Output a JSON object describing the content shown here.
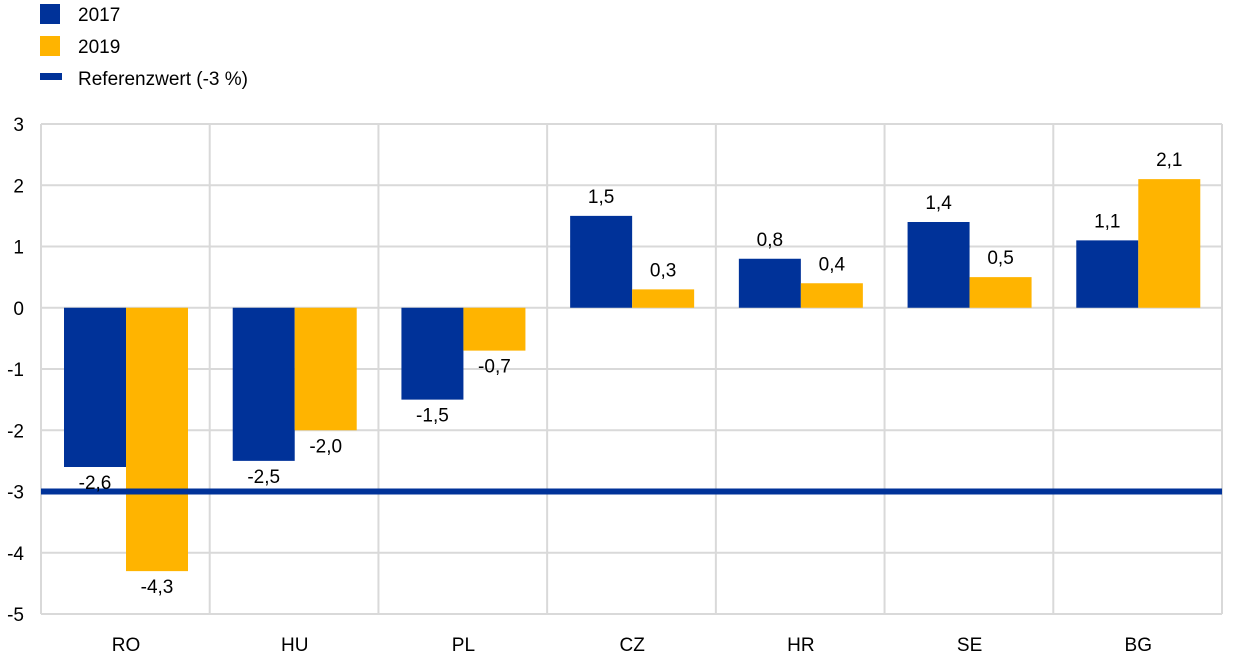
{
  "chart_data": {
    "type": "bar",
    "categories": [
      "RO",
      "HU",
      "PL",
      "CZ",
      "HR",
      "SE",
      "BG"
    ],
    "series": [
      {
        "name": "2017",
        "color": "#003299",
        "values": [
          -2.6,
          -2.5,
          -1.5,
          1.5,
          0.8,
          1.4,
          1.1
        ],
        "labels": [
          "-2,6",
          "-2,5",
          "-1,5",
          "1,5",
          "0,8",
          "1,4",
          "1,1"
        ]
      },
      {
        "name": "2019",
        "color": "#FFB400",
        "values": [
          -4.3,
          -2.0,
          -0.7,
          0.3,
          0.4,
          0.5,
          2.1
        ],
        "labels": [
          "-4,3",
          "-2,0",
          "-0,7",
          "0,3",
          "0,4",
          "0,5",
          "2,1"
        ]
      }
    ],
    "reference_line": {
      "name": "Referenzwert (-3 %)",
      "value": -3,
      "color": "#003299"
    },
    "ylim": [
      -5,
      3
    ],
    "yticks": [
      3,
      2,
      1,
      0,
      -1,
      -2,
      -3,
      -4,
      -5
    ],
    "ytick_labels": [
      "3",
      "2",
      "1",
      "0",
      "-1",
      "-2",
      "-3",
      "-4",
      "-5"
    ],
    "grid": true,
    "legend_position": "top-left",
    "title": "",
    "xlabel": "",
    "ylabel": ""
  }
}
